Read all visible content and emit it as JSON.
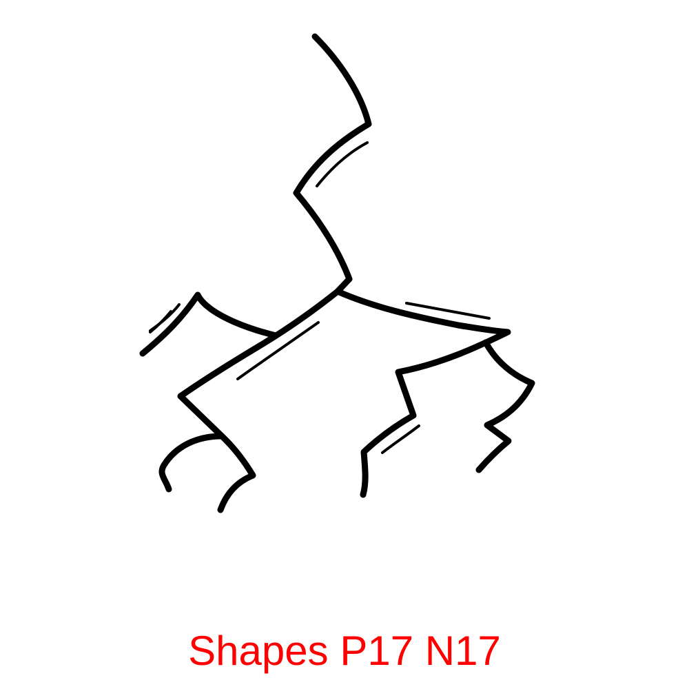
{
  "caption": {
    "text": "Shapes P17 N17",
    "color": "#ff0000"
  },
  "drawing": {
    "stroke_color": "#000000",
    "background_color": "#ffffff",
    "subject": "lightning-crack-icon"
  }
}
